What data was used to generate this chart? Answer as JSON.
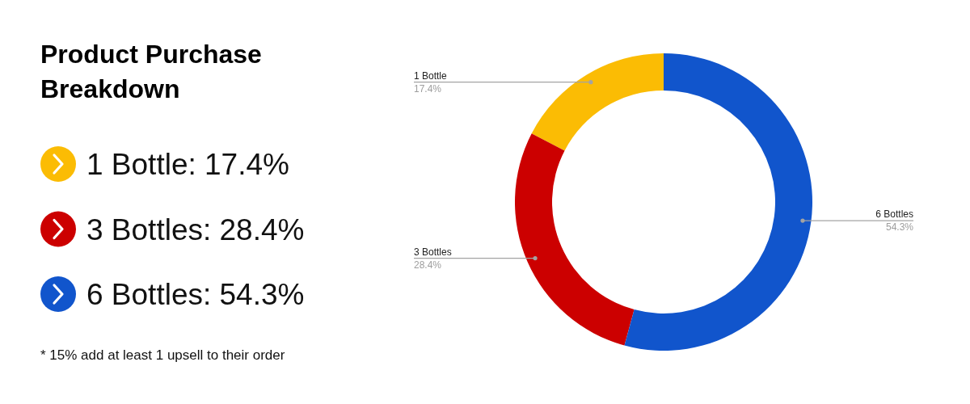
{
  "chart_data": {
    "type": "donut",
    "title": "Product Purchase Breakdown",
    "categories": [
      "1 Bottle",
      "3 Bottles",
      "6 Bottles"
    ],
    "values": [
      17.4,
      28.4,
      54.3
    ],
    "value_labels": [
      "17.4%",
      "28.4%",
      "54.3%"
    ],
    "colors": [
      "#fbbc04",
      "#cc0000",
      "#1155cc"
    ],
    "annotations": [
      "1 Bottle: 17.4%",
      "3 Bottles: 28.4%",
      "6 Bottles: 54.3%",
      "* 15% add at least 1 upsell to their order"
    ]
  }
}
